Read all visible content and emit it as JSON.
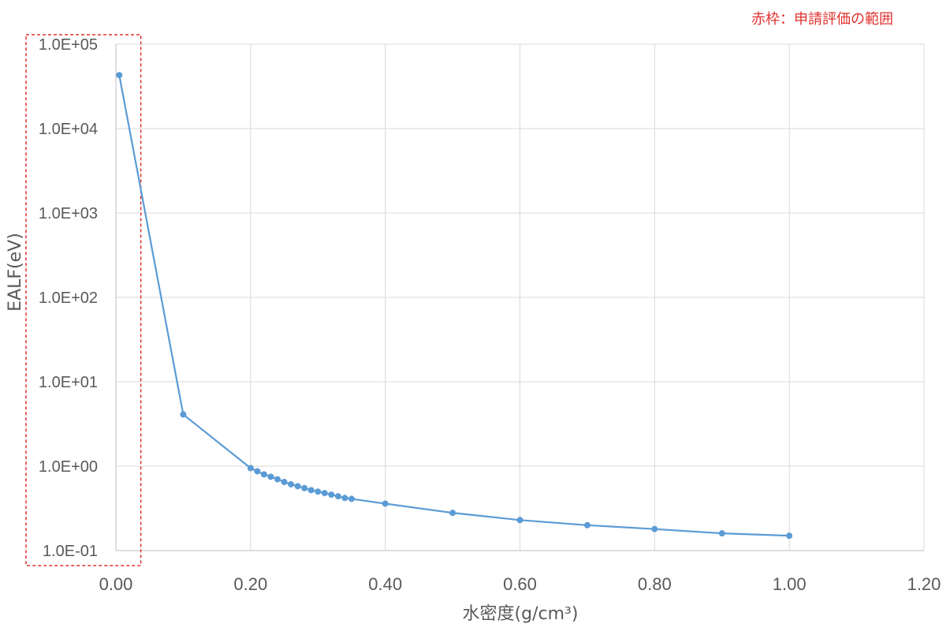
{
  "chart_data": {
    "type": "line",
    "xlabel": "水密度(g/cm³)",
    "ylabel": "EALF(eV)",
    "xlim": [
      0,
      1.2
    ],
    "ylim": [
      0.1,
      100000
    ],
    "yscale": "log",
    "grid": true,
    "x_ticks": [
      "0.00",
      "0.20",
      "0.40",
      "0.60",
      "0.80",
      "1.00",
      "1.20"
    ],
    "y_ticks": [
      "1.0E-01",
      "1.0E+00",
      "1.0E+01",
      "1.0E+02",
      "1.0E+03",
      "1.0E+04",
      "1.0E+05"
    ],
    "series": [
      {
        "color": "#5b9bd5",
        "x": [
          0.005,
          0.1,
          0.2,
          0.21,
          0.22,
          0.23,
          0.24,
          0.25,
          0.26,
          0.27,
          0.28,
          0.29,
          0.3,
          0.31,
          0.32,
          0.33,
          0.34,
          0.35,
          0.4,
          0.5,
          0.6,
          0.7,
          0.8,
          0.9,
          1.0
        ],
        "y": [
          43000,
          4.1,
          0.95,
          0.87,
          0.8,
          0.75,
          0.7,
          0.65,
          0.61,
          0.58,
          0.55,
          0.52,
          0.5,
          0.48,
          0.46,
          0.44,
          0.42,
          0.41,
          0.36,
          0.28,
          0.23,
          0.2,
          0.18,
          0.16,
          0.15
        ]
      }
    ],
    "annotations": [
      {
        "text": "赤枠：申請評価の範囲",
        "color": "#e0312f",
        "highlight_x_range": [
          0,
          0.03
        ]
      }
    ]
  }
}
